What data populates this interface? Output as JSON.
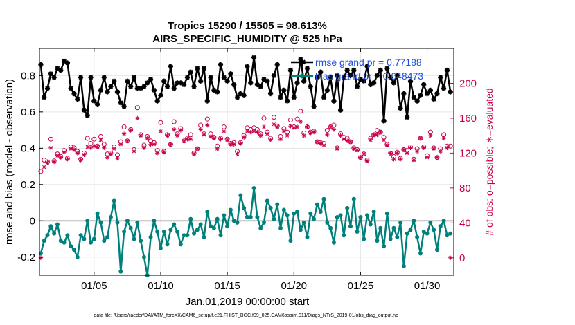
{
  "chart_data": {
    "type": "line",
    "title": "Tropics 15290 / 15505 = 98.613%",
    "subtitle": "AIRS_SPECIFIC_HUMIDITY @ 525 hPa",
    "xlabel": "Jan.01,2019 00:00:00 start",
    "ylabel": "rmse and bias (model - observation)",
    "y2label": "# of obs: o=possible; ∗=evaluated",
    "footer": "data file: /Users/raeder/DAI/ATM_forcXX/CAM6_setup/f.e21.FHIST_BGC.f09_025.CAM6assim.011/Diags_NTrS_2019-01/obs_diag_output.nc",
    "xlim": [
      0.9,
      32.0
    ],
    "ylim": [
      -0.3,
      0.95
    ],
    "y2lim": [
      -20,
      240
    ],
    "xtick_positions": [
      5,
      10,
      15,
      20,
      25,
      30
    ],
    "xtick_labels": [
      "01/05",
      "01/10",
      "01/15",
      "01/20",
      "01/25",
      "01/30"
    ],
    "yticks": [
      -0.2,
      0,
      0.2,
      0.4,
      0.6,
      0.8
    ],
    "ytick_labels": [
      "-0.2",
      "0",
      "0.2",
      "0.4",
      "0.6",
      "0.8"
    ],
    "y2ticks": [
      0,
      40,
      80,
      120,
      160,
      200
    ],
    "y2tick_labels": [
      "0",
      "40",
      "80",
      "120",
      "160",
      "200"
    ],
    "grid": true,
    "legend": [
      "rmse grand pr = 0.77188",
      "bias grand pr = 0.048473"
    ],
    "x": [
      1.0,
      1.25,
      1.5,
      1.75,
      2.0,
      2.25,
      2.5,
      2.75,
      3.0,
      3.25,
      3.5,
      3.75,
      4.0,
      4.25,
      4.5,
      4.75,
      5.0,
      5.25,
      5.5,
      5.75,
      6.0,
      6.25,
      6.5,
      6.75,
      7.0,
      7.25,
      7.5,
      7.75,
      8.0,
      8.25,
      8.5,
      8.75,
      9.0,
      9.25,
      9.5,
      9.75,
      10.0,
      10.25,
      10.5,
      10.75,
      11.0,
      11.25,
      11.5,
      11.75,
      12.0,
      12.25,
      12.5,
      12.75,
      13.0,
      13.25,
      13.5,
      13.75,
      14.0,
      14.25,
      14.5,
      14.75,
      15.0,
      15.25,
      15.5,
      15.75,
      16.0,
      16.25,
      16.5,
      16.75,
      17.0,
      17.25,
      17.5,
      17.75,
      18.0,
      18.25,
      18.5,
      18.75,
      19.0,
      19.25,
      19.5,
      19.75,
      20.0,
      20.25,
      20.5,
      20.75,
      21.0,
      21.25,
      21.5,
      21.75,
      22.0,
      22.25,
      22.5,
      22.75,
      23.0,
      23.25,
      23.5,
      23.75,
      24.0,
      24.25,
      24.5,
      24.75,
      25.0,
      25.25,
      25.5,
      25.75,
      26.0,
      26.25,
      26.5,
      26.75,
      27.0,
      27.25,
      27.5,
      27.75,
      28.0,
      28.25,
      28.5,
      28.75,
      29.0,
      29.25,
      29.5,
      29.75,
      30.0,
      30.25,
      30.5,
      30.75,
      31.0,
      31.25,
      31.5,
      31.75
    ],
    "series": [
      {
        "name": "rmse",
        "color": "#000000",
        "axis": "left",
        "values": [
          0.86,
          0.68,
          0.73,
          0.81,
          0.79,
          0.84,
          0.83,
          0.88,
          0.87,
          0.73,
          0.7,
          0.67,
          0.79,
          0.61,
          0.58,
          0.79,
          0.66,
          0.64,
          0.72,
          0.79,
          0.71,
          0.74,
          0.77,
          0.71,
          0.65,
          0.63,
          0.77,
          0.74,
          0.79,
          0.73,
          0.73,
          0.74,
          0.76,
          0.78,
          0.72,
          0.66,
          0.69,
          0.77,
          0.74,
          0.85,
          0.73,
          0.76,
          0.76,
          0.75,
          0.79,
          0.82,
          0.74,
          0.84,
          0.77,
          0.84,
          0.66,
          0.79,
          0.72,
          0.71,
          0.86,
          0.79,
          0.77,
          0.81,
          0.75,
          0.68,
          0.7,
          0.69,
          0.85,
          0.76,
          0.9,
          0.75,
          0.74,
          0.78,
          0.77,
          0.7,
          0.8,
          0.86,
          0.68,
          0.72,
          0.66,
          0.83,
          0.68,
          0.76,
          0.89,
          0.77,
          0.84,
          0.74,
          0.63,
          0.79,
          0.82,
          0.68,
          0.72,
          0.79,
          0.66,
          0.8,
          0.61,
          0.79,
          0.83,
          0.8,
          0.83,
          0.74,
          0.78,
          0.77,
          0.85,
          0.75,
          0.76,
          0.8,
          0.83,
          0.55,
          0.84,
          0.79,
          0.76,
          0.8,
          0.62,
          0.7,
          0.57,
          0.77,
          0.68,
          0.66,
          0.69,
          0.75,
          0.7,
          0.72,
          0.67,
          0.7,
          0.79,
          0.73,
          0.83,
          0.71
        ]
      },
      {
        "name": "bias",
        "color": "#00807a",
        "axis": "left",
        "values": [
          -0.18,
          -0.11,
          -0.08,
          -0.03,
          -0.07,
          -0.02,
          -0.11,
          -0.12,
          -0.08,
          -0.14,
          -0.16,
          -0.2,
          -0.08,
          -0.1,
          0.0,
          -0.12,
          -0.1,
          0.04,
          -0.01,
          -0.11,
          -0.09,
          0.02,
          0.11,
          -0.01,
          -0.28,
          -0.06,
          0.0,
          -0.04,
          -0.1,
          -0.01,
          -0.11,
          -0.2,
          -0.3,
          -0.09,
          0.0,
          -0.06,
          -0.15,
          -0.06,
          -0.13,
          -0.05,
          -0.02,
          -0.06,
          -0.13,
          -0.08,
          -0.08,
          0.01,
          -0.07,
          -0.05,
          -0.02,
          -0.09,
          0.05,
          -0.03,
          -0.04,
          0.01,
          -0.08,
          0.03,
          -0.03,
          0.06,
          0.0,
          -0.01,
          0.14,
          0.07,
          0.02,
          0.02,
          0.18,
          0.02,
          -0.04,
          -0.01,
          0.11,
          0.07,
          0.01,
          0.09,
          -0.04,
          0.06,
          0.03,
          -0.11,
          0.04,
          0.05,
          -0.05,
          -0.01,
          -0.09,
          0.04,
          0.01,
          0.09,
          0.05,
          0.12,
          -0.01,
          -0.04,
          -0.12,
          0.02,
          0.03,
          -0.08,
          0.07,
          -0.03,
          0.12,
          -0.06,
          0.02,
          -0.1,
          0.03,
          -0.02,
          0.05,
          -0.11,
          -0.04,
          -0.14,
          0.04,
          -0.1,
          -0.04,
          -0.09,
          -0.01,
          -0.25,
          -0.07,
          -0.05,
          0.0,
          -0.09,
          -0.18,
          -0.06,
          -0.07,
          -0.01,
          -0.05,
          -0.16,
          -0.03,
          0.0,
          -0.08,
          -0.07
        ]
      },
      {
        "name": "obs possible",
        "color": "#c8004b",
        "axis": "right",
        "marker": "o",
        "values": [
          99,
          112,
          110,
          136,
          111,
          119,
          116,
          123,
          114,
          127,
          126,
          122,
          113,
          120,
          137,
          131,
          136,
          128,
          139,
          130,
          119,
          120,
          127,
          118,
          133,
          150,
          134,
          147,
          124,
          172,
          141,
          129,
          139,
          134,
          132,
          123,
          155,
          122,
          141,
          130,
          156,
          142,
          148,
          134,
          137,
          141,
          120,
          125,
          152,
          142,
          159,
          142,
          138,
          128,
          137,
          150,
          136,
          131,
          132,
          122,
          132,
          140,
          149,
          147,
          149,
          147,
          142,
          160,
          144,
          137,
          161,
          151,
          139,
          148,
          144,
          158,
          150,
          159,
          168,
          143,
          150,
          144,
          145,
          133,
          132,
          131,
          146,
          150,
          152,
          126,
          142,
          138,
          137,
          133,
          126,
          124,
          115,
          119,
          112,
          137,
          141,
          146,
          144,
          138,
          130,
          120,
          116,
          121,
          114,
          124,
          123,
          127,
          113,
          125,
          137,
          127,
          117,
          144,
          126,
          115,
          125,
          141,
          128,
          128
        ]
      },
      {
        "name": "obs evaluated",
        "color": "#c8004b",
        "axis": "right",
        "marker": "*",
        "values": [
          0,
          104,
          109,
          126,
          110,
          117,
          115,
          121,
          113,
          125,
          124,
          120,
          112,
          118,
          127,
          126,
          128,
          127,
          135,
          126,
          115,
          119,
          125,
          114,
          130,
          142,
          134,
          146,
          122,
          160,
          140,
          126,
          137,
          130,
          130,
          120,
          145,
          121,
          140,
          130,
          147,
          140,
          146,
          134,
          136,
          136,
          119,
          125,
          147,
          141,
          152,
          139,
          137,
          125,
          136,
          145,
          135,
          130,
          130,
          119,
          131,
          138,
          145,
          144,
          145,
          144,
          140,
          150,
          142,
          135,
          153,
          150,
          136,
          145,
          140,
          151,
          149,
          150,
          156,
          140,
          150,
          143,
          144,
          133,
          131,
          129,
          141,
          150,
          147,
          125,
          140,
          136,
          134,
          133,
          125,
          123,
          115,
          119,
          111,
          135,
          141,
          141,
          144,
          135,
          129,
          120,
          113,
          120,
          113,
          124,
          120,
          126,
          112,
          122,
          137,
          126,
          115,
          140,
          125,
          115,
          122,
          137,
          126,
          0
        ]
      }
    ]
  }
}
